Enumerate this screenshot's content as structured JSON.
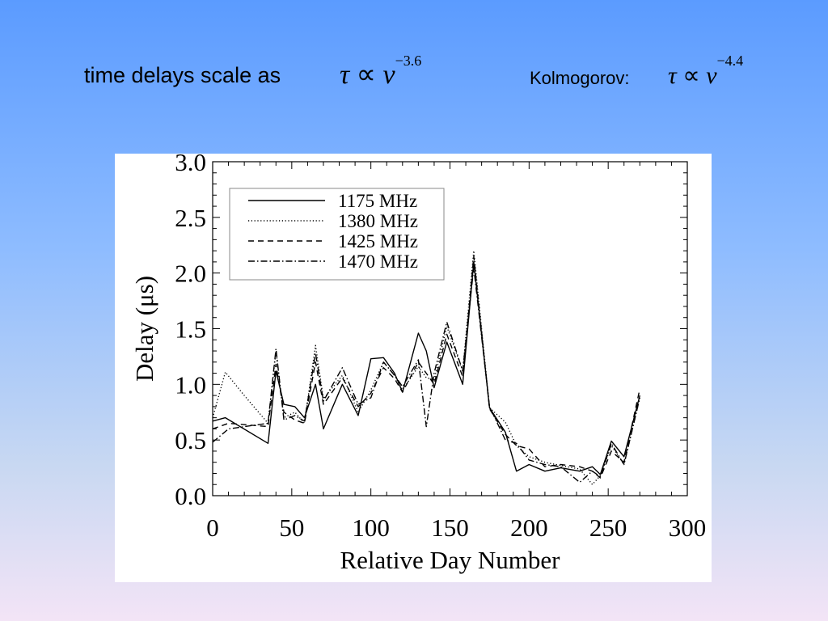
{
  "slide": {
    "headline": "time delays scale as",
    "formula1": {
      "lhs": "τ",
      "rel": "∝",
      "var": "ν",
      "exp": "−3.6"
    },
    "kolmogorov_label": "Kolmogorov:",
    "formula2": {
      "lhs": "τ",
      "rel": "∝",
      "var": "ν",
      "exp": "−4.4"
    }
  },
  "chart_data": {
    "type": "line",
    "xlabel": "Relative Day Number",
    "ylabel": "Delay (μs)",
    "xlim": [
      0,
      300
    ],
    "ylim": [
      0.0,
      3.0
    ],
    "xticks": [
      0,
      50,
      100,
      150,
      200,
      250,
      300
    ],
    "yticks": [
      0.0,
      0.5,
      1.0,
      1.5,
      2.0,
      2.5,
      3.0
    ],
    "ytick_labels": [
      "0.0",
      "0.5",
      "1.0",
      "1.5",
      "2.0",
      "2.5",
      "3.0"
    ],
    "grid": false,
    "legend_position": "top-left",
    "series": [
      {
        "name": "1175 MHz",
        "dash": "solid",
        "x": [
          0,
          8,
          35,
          40,
          45,
          52,
          58,
          65,
          70,
          82,
          92,
          100,
          108,
          115,
          120,
          130,
          135,
          140,
          148,
          158,
          165,
          175,
          185,
          192,
          200,
          210,
          220,
          232,
          240,
          245,
          252,
          260,
          270
        ],
        "y": [
          0.67,
          0.7,
          0.47,
          1.12,
          0.82,
          0.8,
          0.7,
          1.0,
          0.6,
          1.0,
          0.72,
          1.23,
          1.24,
          1.1,
          0.93,
          1.46,
          1.3,
          0.97,
          1.38,
          1.0,
          2.1,
          0.79,
          0.57,
          0.22,
          0.28,
          0.22,
          0.25,
          0.22,
          0.26,
          0.19,
          0.49,
          0.35,
          0.9
        ]
      },
      {
        "name": "1380 MHz",
        "dash": "dotted",
        "x": [
          0,
          8,
          20,
          35,
          40,
          45,
          52,
          58,
          65,
          70,
          82,
          92,
          100,
          108,
          115,
          120,
          130,
          135,
          140,
          148,
          158,
          165,
          175,
          185,
          192,
          200,
          210,
          220,
          232,
          240,
          245,
          252,
          260,
          270
        ],
        "y": [
          0.7,
          1.11,
          0.9,
          0.65,
          1.3,
          0.7,
          0.75,
          0.65,
          1.35,
          0.87,
          1.08,
          0.75,
          0.95,
          1.2,
          1.08,
          0.95,
          1.16,
          1.06,
          1.04,
          1.52,
          1.12,
          2.2,
          0.79,
          0.66,
          0.45,
          0.35,
          0.3,
          0.27,
          0.24,
          0.1,
          0.18,
          0.45,
          0.28,
          0.88
        ]
      },
      {
        "name": "1425 MHz",
        "dash": "dashed",
        "x": [
          0,
          10,
          35,
          40,
          45,
          52,
          58,
          65,
          70,
          82,
          92,
          100,
          108,
          115,
          120,
          130,
          135,
          140,
          148,
          158,
          165,
          175,
          185,
          192,
          200,
          210,
          220,
          232,
          240,
          245,
          252,
          260,
          270
        ],
        "y": [
          0.6,
          0.65,
          0.62,
          1.18,
          0.75,
          0.68,
          0.65,
          1.2,
          0.82,
          1.06,
          0.8,
          0.92,
          1.15,
          1.05,
          0.93,
          1.2,
          1.1,
          1.0,
          1.45,
          1.07,
          2.15,
          0.78,
          0.55,
          0.45,
          0.42,
          0.26,
          0.28,
          0.26,
          0.22,
          0.16,
          0.4,
          0.3,
          0.96
        ]
      },
      {
        "name": "1470 MHz",
        "dash": "dashdot",
        "x": [
          0,
          10,
          35,
          40,
          45,
          52,
          58,
          65,
          70,
          82,
          92,
          100,
          108,
          115,
          120,
          130,
          135,
          140,
          148,
          158,
          165,
          175,
          185,
          192,
          200,
          210,
          220,
          232,
          240,
          245,
          252,
          260,
          270
        ],
        "y": [
          0.48,
          0.6,
          0.65,
          1.32,
          0.68,
          0.72,
          0.67,
          1.28,
          0.85,
          1.15,
          0.82,
          0.88,
          1.2,
          1.08,
          0.98,
          1.22,
          0.62,
          1.1,
          1.56,
          1.12,
          2.05,
          0.8,
          0.5,
          0.47,
          0.32,
          0.28,
          0.26,
          0.12,
          0.22,
          0.17,
          0.47,
          0.28,
          0.88
        ]
      }
    ]
  }
}
